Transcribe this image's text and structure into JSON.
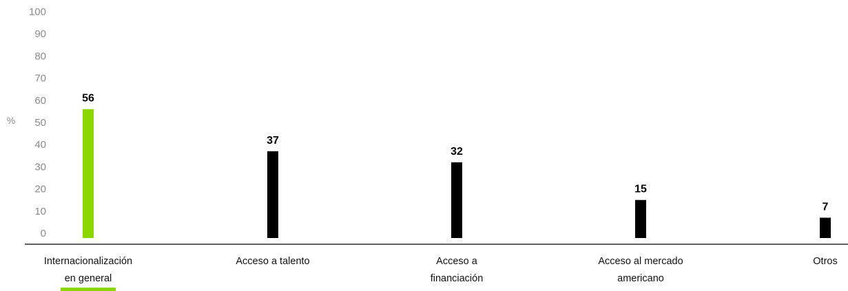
{
  "chart_data": {
    "type": "bar",
    "ylabel": "%",
    "ylim": [
      0,
      100
    ],
    "yticks": [
      0,
      10,
      20,
      30,
      40,
      50,
      60,
      70,
      80,
      90,
      100
    ],
    "categories": [
      [
        "Internacionalización",
        "en general"
      ],
      [
        "Acceso a talento"
      ],
      [
        "Acceso a",
        "financiación"
      ],
      [
        "Acceso al mercado",
        "americano"
      ],
      [
        "Otros"
      ]
    ],
    "values": [
      56,
      37,
      32,
      15,
      7
    ],
    "highlight_index": 0,
    "colors": {
      "highlight": "#8cd600",
      "default": "#000000",
      "axis": "#000000",
      "tick": "#8a8a8a"
    },
    "grid": false
  }
}
